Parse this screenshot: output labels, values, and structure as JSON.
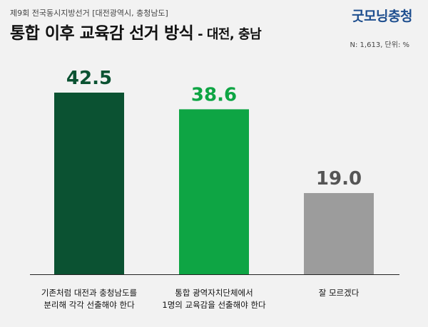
{
  "header": {
    "subtitle": "제9회 전국동시지방선거 [대전광역시, 충청남도]",
    "title_main": "통합 이후 교육감 선거 방식",
    "title_dash": " - ",
    "title_region": "대전, 충남",
    "logo": "굿모닝충청",
    "sample_note": "N: 1,613, 단위: %"
  },
  "chart_data": {
    "type": "bar",
    "categories": [
      [
        "기존처럼 대전과 충청남도를",
        "분리해 각각 선출해야 한다"
      ],
      [
        "통합 광역자치단체에서",
        "1명의 교육감을 선출해야 한다"
      ],
      [
        "잘 모르겠다"
      ]
    ],
    "values": [
      42.5,
      38.6,
      19.0
    ],
    "value_labels": [
      "42.5",
      "38.6",
      "19.0"
    ],
    "colors": [
      "#0b5232",
      "#0ea544",
      "#9c9c9c"
    ],
    "label_colors": [
      "#0b5232",
      "#0ea544",
      "#555555"
    ],
    "ylim": [
      0,
      42.5
    ],
    "grid": false,
    "legend": "none"
  }
}
